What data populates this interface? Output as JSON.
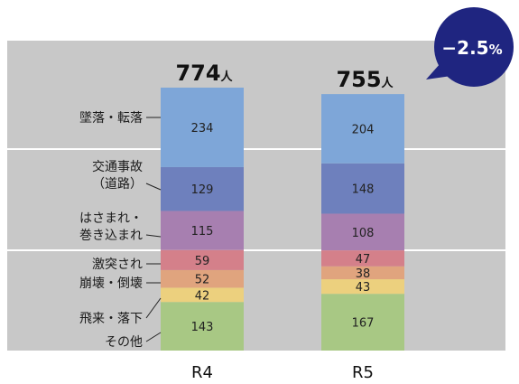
{
  "chart_data": {
    "type": "bar",
    "stacked": true,
    "categories": [
      "R4",
      "R5"
    ],
    "totals": [
      774,
      755
    ],
    "total_unit": "人",
    "series": [
      {
        "name": "墜落・転落",
        "label_lines": [
          "墜落・転落"
        ],
        "values": [
          234,
          204
        ],
        "color": "#7ea6d8"
      },
      {
        "name": "交通事故（道路）",
        "label_lines": [
          "交通事故",
          "（道路）"
        ],
        "values": [
          129,
          148
        ],
        "color": "#6e80bd"
      },
      {
        "name": "はさまれ・巻き込まれ",
        "label_lines": [
          "はさまれ・",
          "巻き込まれ"
        ],
        "values": [
          115,
          108
        ],
        "color": "#a77fb0"
      },
      {
        "name": "激突され",
        "label_lines": [
          "激突され"
        ],
        "values": [
          59,
          47
        ],
        "color": "#d4808a"
      },
      {
        "name": "崩壊・倒壊",
        "label_lines": [
          "崩壊・倒壊"
        ],
        "values": [
          52,
          38
        ],
        "color": "#e0a47e"
      },
      {
        "name": "飛来・落下",
        "label_lines": [
          "飛来・落下"
        ],
        "values": [
          42,
          43
        ],
        "color": "#ecd07e"
      },
      {
        "name": "その他",
        "label_lines": [
          "その他"
        ],
        "values": [
          143,
          167
        ],
        "color": "#a8c884"
      }
    ],
    "change_badge": {
      "value": "−2.5",
      "unit": "%",
      "color": "#1f2580"
    },
    "legend": "left-labels",
    "background_color": "#c8c8c8"
  }
}
